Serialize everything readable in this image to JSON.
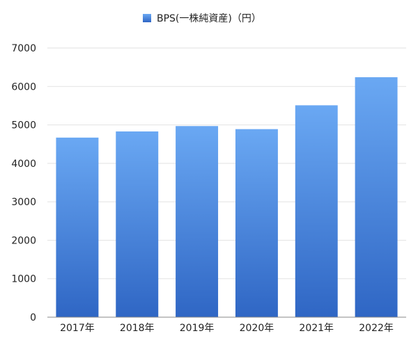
{
  "chart_data": {
    "type": "bar",
    "categories": [
      "2017年",
      "2018年",
      "2019年",
      "2020年",
      "2021年",
      "2022年"
    ],
    "series": [
      {
        "name": "BPS(一株純資産)（円）",
        "values": [
          4670,
          4830,
          4970,
          4890,
          5510,
          6240
        ]
      }
    ],
    "ylim": [
      0,
      7000
    ],
    "yticks": [
      0,
      1000,
      2000,
      3000,
      4000,
      5000,
      6000,
      7000
    ],
    "grid": true,
    "legend_position": "top-center",
    "colors": {
      "bar_top": "#6aa8f3",
      "bar_bottom": "#2f66c4",
      "grid": "#e2e2e2",
      "axis": "#8a8a8a"
    }
  }
}
